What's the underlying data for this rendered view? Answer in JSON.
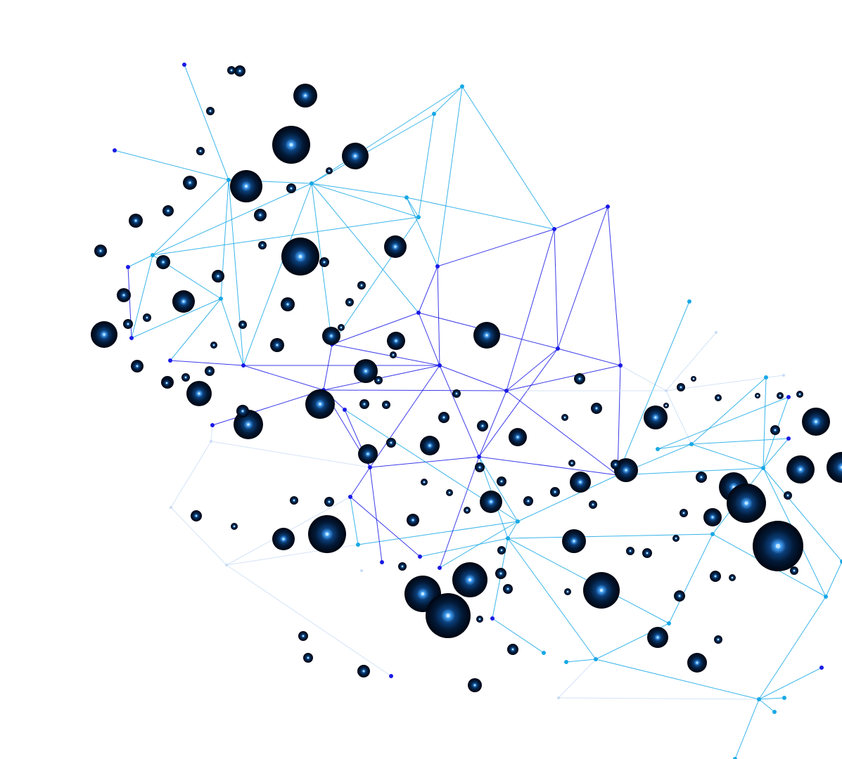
{
  "image": {
    "subject": "network-graph-illustration",
    "background_color": "#ffffff",
    "colors": {
      "sphere_dark": "#000814",
      "sphere_mid": "#06254a",
      "sphere_glow": "#2f8fff",
      "sphere_core": "#bfe4ff",
      "line_deep_blue": "#1a1ae6",
      "line_cyan": "#19a8e6",
      "line_faint": "#c9dcf5"
    }
  }
}
